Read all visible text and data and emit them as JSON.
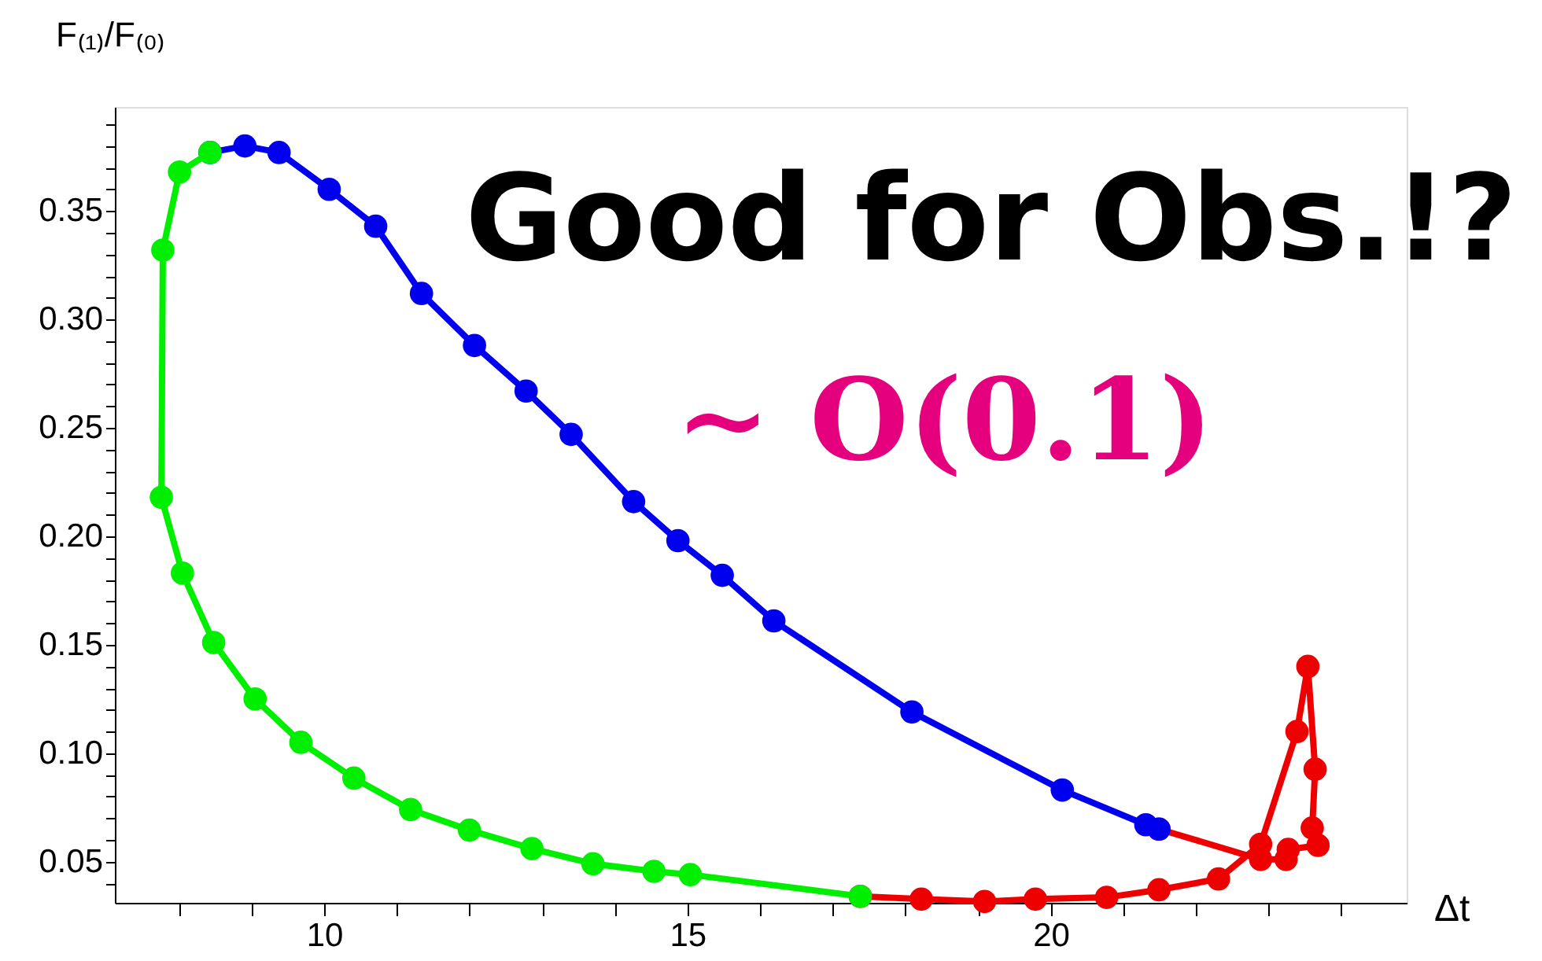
{
  "chart_data": {
    "type": "line",
    "xlabel": "Δt",
    "ylabel": "F₍₁₎/F₍₀₎",
    "xlim": [
      7.12,
      24.9
    ],
    "ylim": [
      0.031,
      0.398
    ],
    "xticks": [
      {
        "value": 8,
        "label": null
      },
      {
        "value": 9,
        "label": null
      },
      10,
      {
        "value": 11,
        "label": null
      },
      {
        "value": 12,
        "label": null
      },
      {
        "value": 13,
        "label": null
      },
      {
        "value": 14,
        "label": null
      },
      15,
      {
        "value": 16,
        "label": null
      },
      {
        "value": 17,
        "label": null
      },
      {
        "value": 18,
        "label": null
      },
      {
        "value": 19,
        "label": null
      },
      20,
      {
        "value": 21,
        "label": null
      },
      {
        "value": 22,
        "label": null
      },
      {
        "value": 23,
        "label": null
      },
      {
        "value": 24,
        "label": null
      }
    ],
    "yticks": [
      {
        "value": 0.04,
        "label": null
      },
      0.05,
      {
        "value": 0.06,
        "label": null
      },
      {
        "value": 0.07,
        "label": null
      },
      {
        "value": 0.08,
        "label": null
      },
      {
        "value": 0.09,
        "label": null
      },
      {
        "value": 0.1,
        "label": "0.10"
      },
      {
        "value": 0.11,
        "label": null
      },
      {
        "value": 0.12,
        "label": null
      },
      {
        "value": 0.13,
        "label": null
      },
      {
        "value": 0.14,
        "label": null
      },
      0.15,
      {
        "value": 0.16,
        "label": null
      },
      {
        "value": 0.17,
        "label": null
      },
      {
        "value": 0.18,
        "label": null
      },
      {
        "value": 0.19,
        "label": null
      },
      {
        "value": 0.2,
        "label": "0.20"
      },
      {
        "value": 0.21,
        "label": null
      },
      {
        "value": 0.22,
        "label": null
      },
      {
        "value": 0.23,
        "label": null
      },
      {
        "value": 0.24,
        "label": null
      },
      0.25,
      {
        "value": 0.26,
        "label": null
      },
      {
        "value": 0.27,
        "label": null
      },
      {
        "value": 0.28,
        "label": null
      },
      {
        "value": 0.29,
        "label": null
      },
      {
        "value": 0.3,
        "label": "0.30"
      },
      {
        "value": 0.31,
        "label": null
      },
      {
        "value": 0.32,
        "label": null
      },
      {
        "value": 0.33,
        "label": null
      },
      {
        "value": 0.34,
        "label": null
      },
      0.35,
      {
        "value": 0.36,
        "label": null
      },
      {
        "value": 0.37,
        "label": null
      },
      {
        "value": 0.38,
        "label": null
      },
      {
        "value": 0.39,
        "label": null
      }
    ],
    "grid": false,
    "marker": "circle",
    "line_style": "solid",
    "annotations": [
      "Good for Obs.!?",
      "∼ O(0.1)"
    ],
    "series": [
      {
        "color": "#ee0000",
        "x": [
          17.38,
          18.22,
          19.09,
          19.79,
          20.77,
          21.49,
          22.31,
          22.89,
          23.39,
          23.54,
          23.64,
          23.6,
          23.68,
          23.27,
          23.24,
          22.89,
          21.49
        ],
        "values": [
          0.034,
          0.0327,
          0.0316,
          0.0327,
          0.0335,
          0.037,
          0.042,
          0.058,
          0.11,
          0.14,
          0.0926,
          0.0655,
          0.0575,
          0.0556,
          0.051,
          0.051,
          0.065
        ]
      },
      {
        "color": "#0000ee",
        "x": [
          8.43,
          8.91,
          9.38,
          10.07,
          10.71,
          11.34,
          12.07,
          12.78,
          13.4,
          14.26,
          14.87,
          15.48,
          16.19,
          18.09,
          20.16,
          21.31,
          21.49
        ],
        "values": [
          0.377,
          0.38,
          0.377,
          0.36,
          0.343,
          0.312,
          0.288,
          0.267,
          0.247,
          0.216,
          0.198,
          0.182,
          0.161,
          0.119,
          0.083,
          0.067,
          0.065
        ]
      },
      {
        "color": "#00ee00",
        "x": [
          8.43,
          8.01,
          7.78,
          7.76,
          8.05,
          8.48,
          9.05,
          9.68,
          10.41,
          11.19,
          12.0,
          12.86,
          13.7,
          14.54,
          15.04,
          17.38
        ],
        "values": [
          0.377,
          0.368,
          0.332,
          0.218,
          0.183,
          0.151,
          0.125,
          0.105,
          0.0885,
          0.074,
          0.0645,
          0.056,
          0.049,
          0.0455,
          0.044,
          0.034
        ]
      }
    ]
  }
}
